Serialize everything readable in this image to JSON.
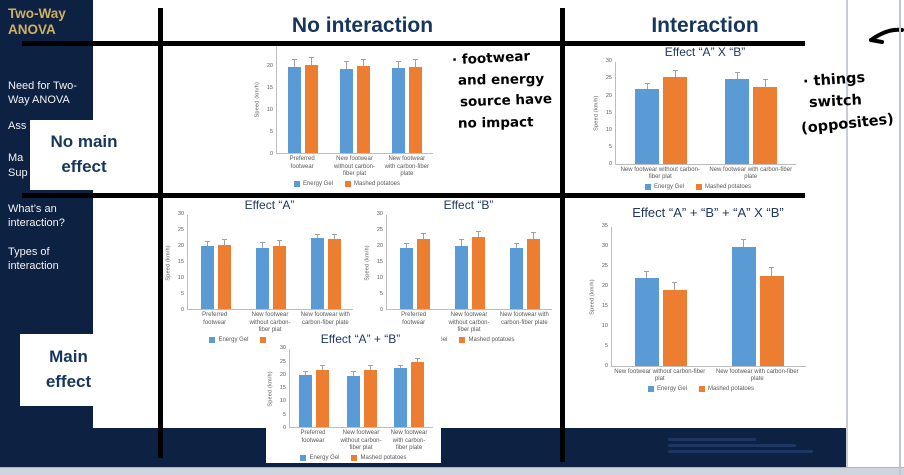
{
  "colors": {
    "navy": "#0d2142",
    "gold": "#d1b05e",
    "header_navy": "#17365d",
    "bar_blue": "#5B9BD5",
    "bar_orange": "#ED7D31"
  },
  "sidebar": {
    "title": "Two-Way ANOVA",
    "items": [
      "Need for Two-Way ANOVA",
      "Ass",
      "Ma",
      "Sup",
      "What’s an interaction?",
      "Types of interaction"
    ]
  },
  "matrix": {
    "col_headers": [
      "No interaction",
      "Interaction"
    ],
    "row_labels": [
      "No main effect",
      "Main effect"
    ]
  },
  "annotations": {
    "left_note_lines": [
      "· footwear",
      "and energy",
      "source have",
      "no impact"
    ],
    "right_note_lines": [
      "· things",
      "switch",
      "(opposites)"
    ]
  },
  "chart_data": [
    {
      "type": "bar",
      "title": "",
      "ylabel": "Speed (km/h)",
      "ylim": [
        0,
        25
      ],
      "ystep": 5,
      "grid": false,
      "legend_position": "bottom",
      "categories": [
        "Preferred footwear",
        "New footwear without carbon-fiber plat",
        "New footwear with carbon-fiber plate"
      ],
      "series": [
        {
          "name": "Energy Gel",
          "color": "#5B9BD5",
          "values": [
            20,
            19.5,
            19.8
          ],
          "errors": [
            1.8,
            1.8,
            1.5
          ]
        },
        {
          "name": "Mashed potatoes",
          "color": "#ED7D31",
          "values": [
            20.3,
            20.1,
            20.0
          ],
          "errors": [
            2.0,
            1.6,
            1.7
          ]
        }
      ]
    },
    {
      "type": "bar",
      "title": "Effect “A” X “B”",
      "ylabel": "Speed (km/h)",
      "ylim": [
        0,
        30
      ],
      "ystep": 5,
      "grid": false,
      "legend_position": "bottom",
      "categories": [
        "New footwear without carbon-fiber plat",
        "New footwear with carbon-fiber plate"
      ],
      "series": [
        {
          "name": "Energy Gel",
          "color": "#5B9BD5",
          "values": [
            22,
            25
          ],
          "errors": [
            1.8,
            2.0
          ]
        },
        {
          "name": "Mashed potatoes",
          "color": "#ED7D31",
          "values": [
            25.5,
            22.5
          ],
          "errors": [
            2.0,
            2.5
          ]
        }
      ]
    },
    {
      "type": "bar",
      "title": "Effect “A”",
      "ylabel": "Speed (km/h)",
      "ylim": [
        0,
        30
      ],
      "ystep": 5,
      "grid": false,
      "legend_position": "bottom",
      "categories": [
        "Preferred footwear",
        "New footwear without carbon-fiber plat",
        "New footwear with carbon-fiber plate"
      ],
      "series": [
        {
          "name": "Energy Gel",
          "color": "#5B9BD5",
          "values": [
            20,
            19.5,
            22.5
          ],
          "errors": [
            1.8,
            2.0,
            1.5
          ]
        },
        {
          "name": "Mashed potatoes",
          "color": "#ED7D31",
          "values": [
            20.3,
            20.1,
            22.3
          ],
          "errors": [
            2.0,
            2.0,
            1.5
          ]
        }
      ]
    },
    {
      "type": "bar",
      "title": "Effect “B”",
      "ylabel": "Speed (km/h)",
      "ylim": [
        0,
        30
      ],
      "ystep": 5,
      "grid": false,
      "legend_position": "bottom",
      "categories": [
        "Preferred footwear",
        "New footwear without carbon-fiber plat",
        "New footwear with carbon-fiber plate"
      ],
      "series": [
        {
          "name": "Energy Gel",
          "color": "#5B9BD5",
          "values": [
            19.5,
            20.2,
            19.6
          ],
          "errors": [
            1.5,
            2.0,
            1.5
          ]
        },
        {
          "name": "Mashed potatoes",
          "color": "#ED7D31",
          "values": [
            22.2,
            23.0,
            22.4
          ],
          "errors": [
            2.0,
            2.0,
            2.0
          ]
        }
      ]
    },
    {
      "type": "bar",
      "title": "Effect “A” + “B”",
      "ylabel": "Speed (km/h)",
      "ylim": [
        0,
        30
      ],
      "ystep": 5,
      "grid": false,
      "legend_position": "bottom",
      "categories": [
        "Preferred footwear",
        "New footwear without carbon-fiber plat",
        "New footwear with carbon-fiber plate"
      ],
      "series": [
        {
          "name": "Energy Gel",
          "color": "#5B9BD5",
          "values": [
            20,
            19.8,
            22.5
          ],
          "errors": [
            1.5,
            1.8,
            1.5
          ]
        },
        {
          "name": "Mashed potatoes",
          "color": "#ED7D31",
          "values": [
            22,
            21.8,
            25
          ],
          "errors": [
            1.8,
            2.0,
            1.5
          ]
        }
      ]
    },
    {
      "type": "bar",
      "title": "Effect “A” + “B” + “A” X “B”",
      "ylabel": "Speed (km/h)",
      "ylim": [
        0,
        35
      ],
      "ystep": 5,
      "grid": false,
      "legend_position": "bottom",
      "categories": [
        "New footwear without carbon-fiber plat",
        "New footwear with carbon-fiber plate"
      ],
      "series": [
        {
          "name": "Energy Gel",
          "color": "#5B9BD5",
          "values": [
            22,
            30
          ],
          "errors": [
            2.0,
            2.0
          ]
        },
        {
          "name": "Mashed potatoes",
          "color": "#ED7D31",
          "values": [
            19,
            22.5
          ],
          "errors": [
            2.0,
            2.5
          ]
        }
      ]
    }
  ]
}
